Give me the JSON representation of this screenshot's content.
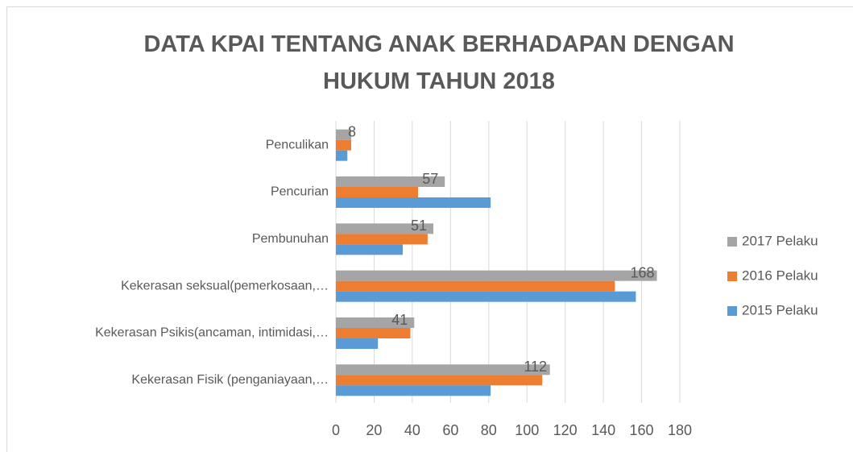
{
  "chart_data": {
    "type": "hbar",
    "title": "DATA KPAI TENTANG ANAK BERHADAPAN DENGAN HUKUM TAHUN 2018",
    "categories": [
      "Penculikan",
      "Pencurian",
      "Pembunuhan",
      "Kekerasan seksual(pemerkosaan,…",
      "Kekerasan Psikis(ancaman, intimidasi,…",
      "Kekerasan Fisik (penganiayaan,…"
    ],
    "series": [
      {
        "name": "2017 Pelaku",
        "color": "#a5a5a5",
        "values": [
          8,
          57,
          51,
          168,
          41,
          112
        ]
      },
      {
        "name": "2016 Pelaku",
        "color": "#ed7d31",
        "values": [
          8,
          43,
          48,
          146,
          39,
          108
        ]
      },
      {
        "name": "2015 Pelaku",
        "color": "#5b9bd5",
        "values": [
          6,
          81,
          35,
          157,
          22,
          81
        ]
      }
    ],
    "xlim": [
      0,
      180
    ],
    "xticks": [
      0,
      20,
      40,
      60,
      80,
      100,
      120,
      140,
      160,
      180
    ],
    "grid": true,
    "legend": "right",
    "data_labels_series": 0
  }
}
